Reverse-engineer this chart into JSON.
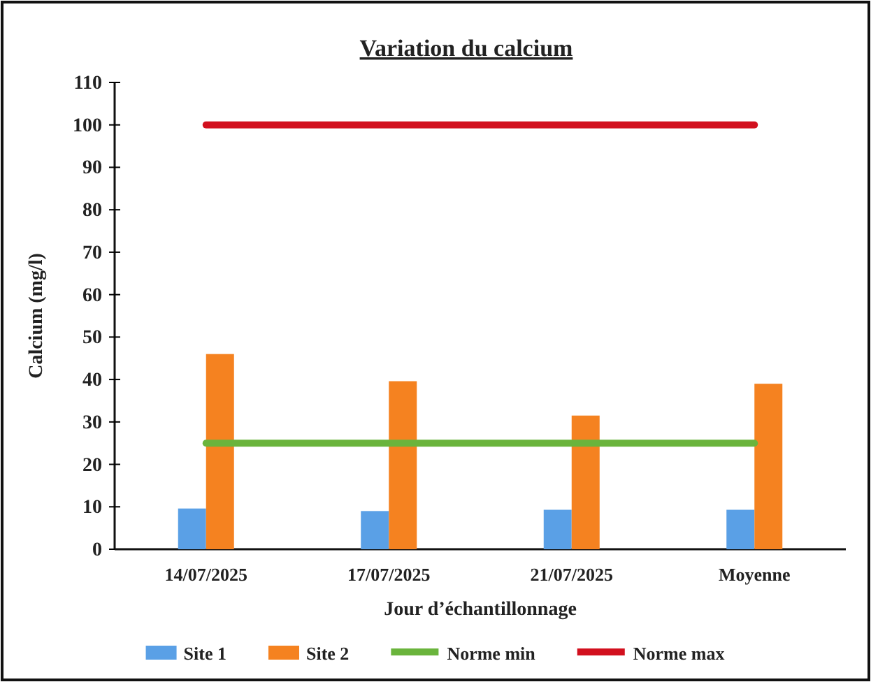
{
  "chart_data": {
    "type": "bar",
    "title": "Variation du calcium",
    "xlabel": "Jour d’échantillonnage",
    "ylabel": "Calcium (mg/l)",
    "categories": [
      "14/07/2025",
      "17/07/2025",
      "21/07/2025",
      "Moyenne"
    ],
    "series": [
      {
        "name": "Site 1",
        "color": "#5aa0e6",
        "values": [
          9.6,
          9,
          9.3,
          9.3
        ]
      },
      {
        "name": "Site 2",
        "color": "#f58220",
        "values": [
          46,
          39.6,
          31.5,
          39
        ]
      },
      {
        "name": "Norme min",
        "type": "line",
        "color": "#6ab43c",
        "values": [
          25,
          25,
          25,
          25
        ]
      },
      {
        "name": "Norme max",
        "type": "line",
        "color": "#d2101e",
        "values": [
          100,
          100,
          100,
          100
        ]
      }
    ],
    "ylim": [
      0,
      110
    ],
    "yticks": [
      0,
      10,
      20,
      30,
      40,
      50,
      60,
      70,
      80,
      90,
      100,
      110
    ],
    "grid": false,
    "legend": "bottom"
  }
}
